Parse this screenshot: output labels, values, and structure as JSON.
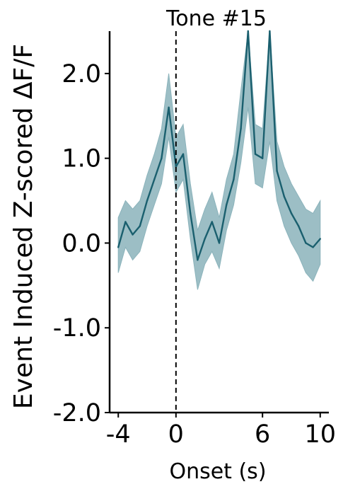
{
  "chart_data": {
    "type": "line",
    "title": "Tone #15",
    "xlabel": "Onset (s)",
    "ylabel": "Event Induced Z-scored ΔF/F",
    "xlim": [
      -4.6,
      10.6
    ],
    "ylim": [
      -2.0,
      2.5
    ],
    "x_ticks": [
      -4,
      0,
      6,
      10
    ],
    "x_tick_labels": [
      "-4",
      "0",
      "6",
      "10"
    ],
    "y_ticks": [
      -2.0,
      -1.0,
      0.0,
      1.0,
      2.0
    ],
    "y_tick_labels": [
      "-2.0",
      "-1.0",
      "0.0",
      "1.0",
      "2.0"
    ],
    "event_marker_x": 0,
    "grid": false,
    "colors": {
      "line": "#1a5f6e",
      "band": "#8bb3bb",
      "axis": "#000000"
    },
    "series": [
      {
        "x": [
          -4.0,
          -3.5,
          -3.0,
          -2.5,
          -2.0,
          -1.5,
          -1.0,
          -0.5,
          0.0,
          0.5,
          1.0,
          1.5,
          2.0,
          2.5,
          3.0,
          3.5,
          4.0,
          4.5,
          5.0,
          5.5,
          6.0,
          6.5,
          7.0,
          7.5,
          8.0,
          8.5,
          9.0,
          9.5,
          10.0
        ],
        "y": [
          -0.05,
          0.25,
          0.1,
          0.2,
          0.5,
          0.75,
          1.0,
          1.6,
          0.9,
          1.05,
          0.35,
          -0.2,
          0.05,
          0.25,
          0.0,
          0.45,
          0.75,
          1.35,
          2.5,
          1.05,
          1.0,
          2.5,
          0.85,
          0.55,
          0.35,
          0.2,
          0.0,
          -0.05,
          0.05
        ],
        "lower": [
          -0.35,
          -0.05,
          -0.2,
          -0.1,
          0.2,
          0.45,
          0.7,
          1.25,
          0.6,
          0.75,
          0.05,
          -0.55,
          -0.25,
          -0.1,
          -0.3,
          0.15,
          0.45,
          0.95,
          1.6,
          0.7,
          0.65,
          1.2,
          0.5,
          0.2,
          0.0,
          -0.15,
          -0.35,
          -0.45,
          -0.25
        ],
        "upper": [
          0.3,
          0.5,
          0.4,
          0.5,
          0.8,
          1.05,
          1.35,
          2.0,
          1.25,
          1.4,
          0.7,
          0.15,
          0.4,
          0.6,
          0.3,
          0.75,
          1.05,
          1.8,
          2.5,
          1.4,
          1.35,
          2.5,
          1.2,
          0.9,
          0.7,
          0.55,
          0.4,
          0.35,
          0.5
        ]
      }
    ]
  }
}
